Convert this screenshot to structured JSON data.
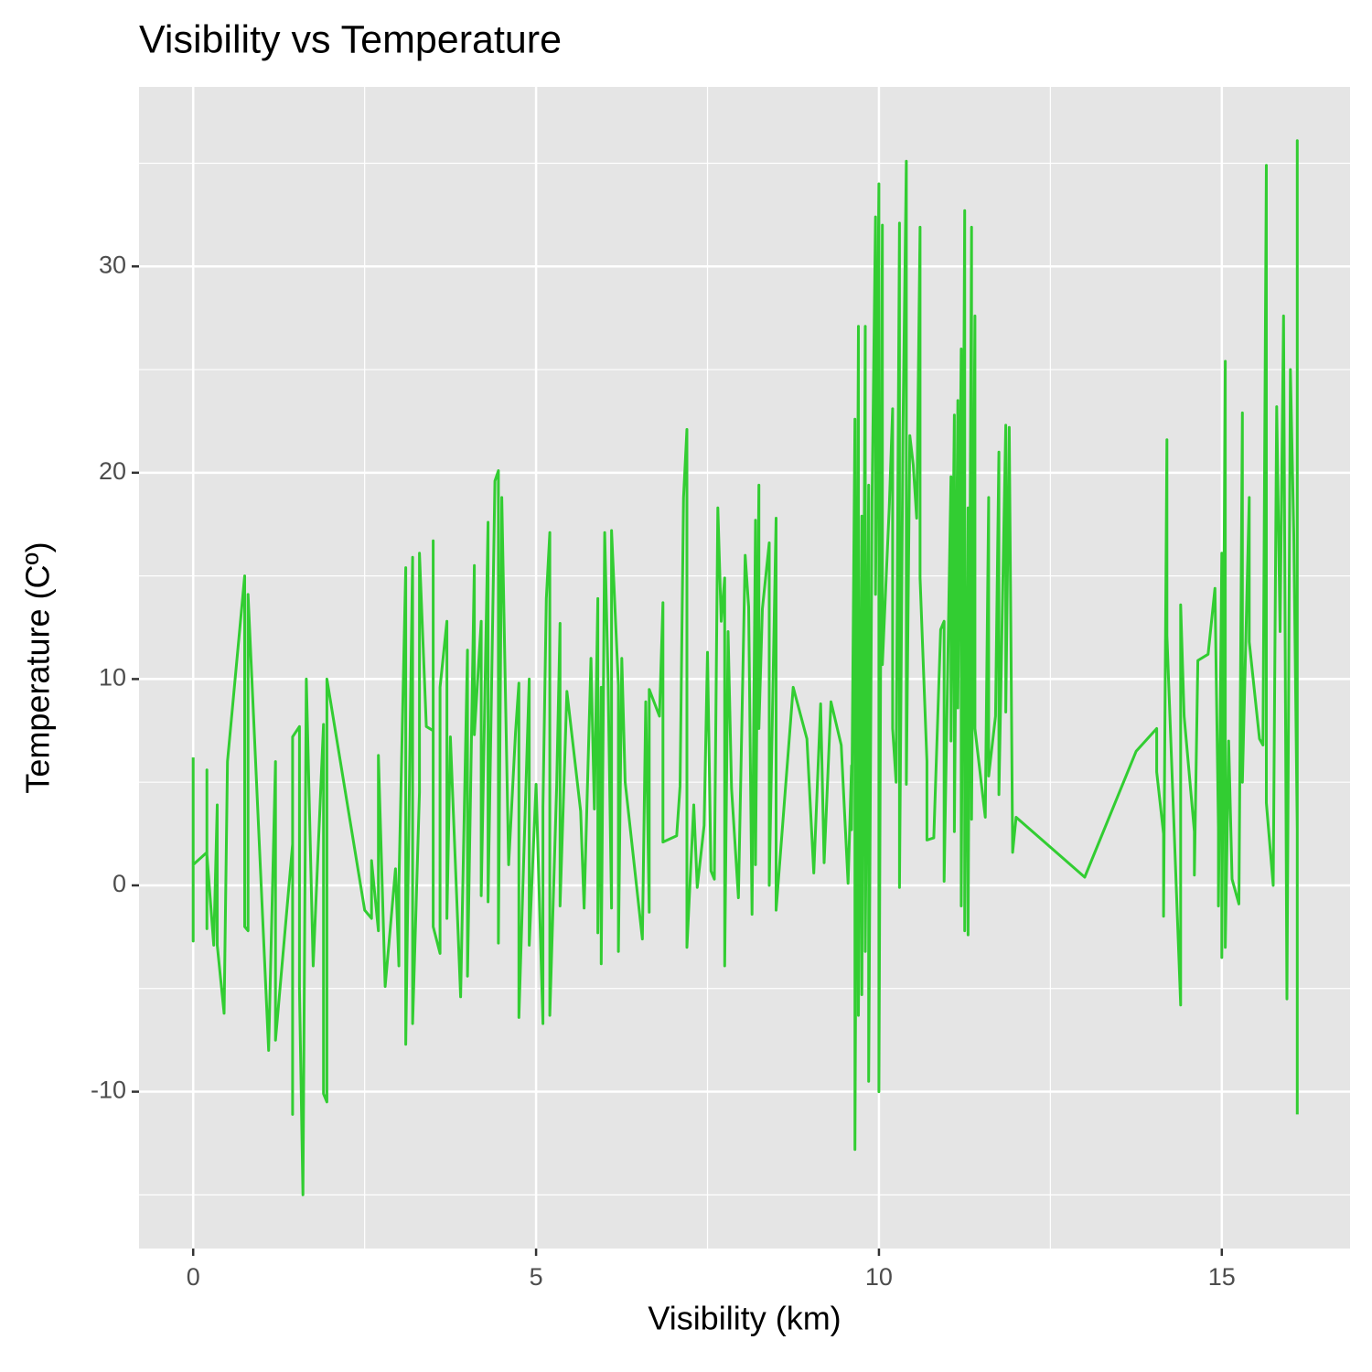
{
  "chart_data": {
    "type": "line",
    "title": "Visibility vs Temperature",
    "x_label": "Visibility (km)",
    "y_label": "Temperature (Cº)",
    "color": "#32cd32",
    "grid": true,
    "xlim": [
      -0.79,
      16.87
    ],
    "ylim": [
      -17.6,
      38.7
    ],
    "xticks": [
      0,
      5,
      10,
      15
    ],
    "yticks": [
      -10,
      0,
      10,
      20,
      30
    ],
    "x": [
      0,
      0,
      0,
      0.2,
      0.2,
      0.2,
      0.2,
      0.3,
      0.35,
      0.35,
      0.45,
      0.5,
      0.75,
      0.75,
      0.8,
      0.8,
      1.1,
      1.2,
      1.2,
      1.45,
      1.45,
      1.45,
      1.55,
      1.55,
      1.6,
      1.65,
      1.75,
      1.9,
      1.9,
      1.95,
      1.95,
      2.5,
      2.6,
      2.6,
      2.7,
      2.7,
      2.8,
      2.95,
      3.0,
      3.0,
      3.1,
      3.1,
      3.2,
      3.2,
      3.3,
      3.3,
      3.4,
      3.5,
      3.5,
      3.5,
      3.6,
      3.6,
      3.7,
      3.7,
      3.75,
      3.9,
      4.0,
      4.0,
      4.1,
      4.1,
      4.2,
      4.2,
      4.3,
      4.3,
      4.4,
      4.45,
      4.45,
      4.5,
      4.6,
      4.7,
      4.75,
      4.75,
      4.9,
      4.9,
      5.0,
      5.1,
      5.1,
      5.15,
      5.2,
      5.2,
      5.3,
      5.35,
      5.35,
      5.45,
      5.65,
      5.7,
      5.8,
      5.85,
      5.9,
      5.9,
      5.95,
      5.95,
      5.95,
      6.0,
      6.05,
      6.1,
      6.1,
      6.2,
      6.2,
      6.25,
      6.3,
      6.55,
      6.6,
      6.65,
      6.65,
      6.8,
      6.85,
      6.85,
      7.05,
      7.1,
      7.15,
      7.2,
      7.2,
      7.3,
      7.35,
      7.45,
      7.5,
      7.55,
      7.6,
      7.65,
      7.7,
      7.75,
      7.75,
      7.8,
      7.85,
      7.95,
      8.05,
      8.1,
      8.15,
      8.2,
      8.2,
      8.25,
      8.25,
      8.3,
      8.4,
      8.4,
      8.5,
      8.5,
      8.75,
      8.95,
      9.05,
      9.15,
      9.2,
      9.3,
      9.45,
      9.55,
      9.6,
      9.6,
      9.65,
      9.65,
      9.7,
      9.7,
      9.75,
      9.75,
      9.8,
      9.8,
      9.85,
      9.85,
      9.9,
      9.95,
      9.95,
      10.0,
      10.0,
      10.05,
      10.05,
      10.15,
      10.2,
      10.2,
      10.25,
      10.3,
      10.3,
      10.35,
      10.4,
      10.4,
      10.45,
      10.5,
      10.55,
      10.6,
      10.6,
      10.7,
      10.7,
      10.8,
      10.9,
      10.95,
      10.95,
      11.05,
      11.05,
      11.1,
      11.1,
      11.15,
      11.15,
      11.2,
      11.2,
      11.25,
      11.25,
      11.3,
      11.3,
      11.35,
      11.35,
      11.4,
      11.4,
      11.55,
      11.6,
      11.6,
      11.7,
      11.75,
      11.75,
      11.85,
      11.85,
      11.9,
      11.95,
      12.0,
      13.0,
      13.75,
      14.05,
      14.05,
      14.15,
      14.15,
      14.2,
      14.2,
      14.4,
      14.4,
      14.45,
      14.6,
      14.6,
      14.65,
      14.8,
      14.9,
      14.95,
      14.95,
      15.0,
      15.0,
      15.05,
      15.05,
      15.1,
      15.15,
      15.25,
      15.3,
      15.3,
      15.4,
      15.4,
      15.55,
      15.6,
      15.65,
      15.65,
      15.75,
      15.8,
      15.85,
      15.9,
      15.95,
      16.0,
      16.05,
      16.1,
      16.1,
      16.1,
      16.1
    ],
    "y": [
      6.2,
      -2.7,
      1.0,
      1.6,
      5.6,
      -2.1,
      1.5,
      -2.9,
      3.9,
      -2.9,
      -6.2,
      6.0,
      15.0,
      -2.0,
      -2.2,
      14.1,
      -8.0,
      6.0,
      -7.5,
      2.0,
      -11.1,
      7.2,
      7.7,
      -5.0,
      -15.0,
      10.0,
      -3.9,
      7.8,
      -10.1,
      -10.5,
      10.0,
      -1.2,
      -1.6,
      1.2,
      -2.2,
      6.3,
      -4.9,
      0.8,
      -3.9,
      0.0,
      15.4,
      -7.7,
      15.9,
      -6.7,
      4.5,
      16.1,
      7.7,
      7.5,
      16.7,
      -2.0,
      -3.3,
      9.6,
      12.8,
      -1.6,
      7.2,
      -5.4,
      11.4,
      -4.4,
      15.5,
      7.3,
      12.8,
      -0.5,
      17.6,
      -0.8,
      19.6,
      20.1,
      -2.8,
      18.8,
      1.0,
      7.4,
      9.8,
      -6.4,
      10.0,
      -2.9,
      4.9,
      -6.7,
      3.8,
      13.9,
      17.1,
      -6.3,
      4.8,
      12.7,
      -1.0,
      9.4,
      3.6,
      -1.1,
      11.0,
      3.7,
      13.9,
      -2.3,
      9.6,
      -3.5,
      -3.8,
      17.1,
      10.0,
      -1.1,
      17.2,
      9.7,
      -3.2,
      11.0,
      5.0,
      -2.6,
      8.9,
      -1.3,
      9.5,
      8.2,
      13.7,
      2.1,
      2.4,
      4.8,
      18.8,
      22.1,
      -3.0,
      3.9,
      -0.1,
      2.9,
      11.3,
      0.7,
      0.3,
      18.3,
      12.8,
      14.9,
      -3.9,
      12.3,
      4.7,
      -0.6,
      16.0,
      13.5,
      -1.4,
      17.7,
      1.0,
      19.4,
      7.6,
      13.4,
      16.6,
      0.0,
      17.8,
      -1.2,
      9.6,
      7.1,
      0.6,
      8.8,
      1.1,
      8.9,
      6.8,
      0.1,
      5.8,
      2.7,
      22.6,
      -12.8,
      27.1,
      -6.3,
      17.9,
      -5.3,
      27.1,
      -3.2,
      19.4,
      -9.5,
      18.6,
      32.4,
      14.1,
      34.0,
      -10.0,
      32.0,
      10.7,
      18.3,
      23.1,
      7.6,
      5.0,
      32.1,
      -0.1,
      22.0,
      35.1,
      4.9,
      21.8,
      20.4,
      17.8,
      31.9,
      14.9,
      6.0,
      2.2,
      2.3,
      12.4,
      12.8,
      0.2,
      19.8,
      7.0,
      22.8,
      2.6,
      23.5,
      8.6,
      26.0,
      -1.0,
      32.7,
      -2.2,
      18.3,
      -2.4,
      31.9,
      3.2,
      27.6,
      7.6,
      3.3,
      18.8,
      5.3,
      8.2,
      21.0,
      4.4,
      22.3,
      8.4,
      22.2,
      1.6,
      3.3,
      0.4,
      6.5,
      7.6,
      5.5,
      2.5,
      -1.5,
      21.6,
      12.1,
      -5.8,
      13.6,
      8.2,
      2.6,
      0.5,
      10.9,
      11.2,
      14.4,
      2.8,
      -1.0,
      16.1,
      -3.5,
      25.4,
      -3.0,
      7.0,
      0.3,
      -0.9,
      22.9,
      5.0,
      18.8,
      11.8,
      7.1,
      6.8,
      34.9,
      4.0,
      0.0,
      23.2,
      12.3,
      27.6,
      -5.5,
      25.0,
      17.0,
      2.7,
      18.8,
      36.1,
      -11.1
    ]
  }
}
